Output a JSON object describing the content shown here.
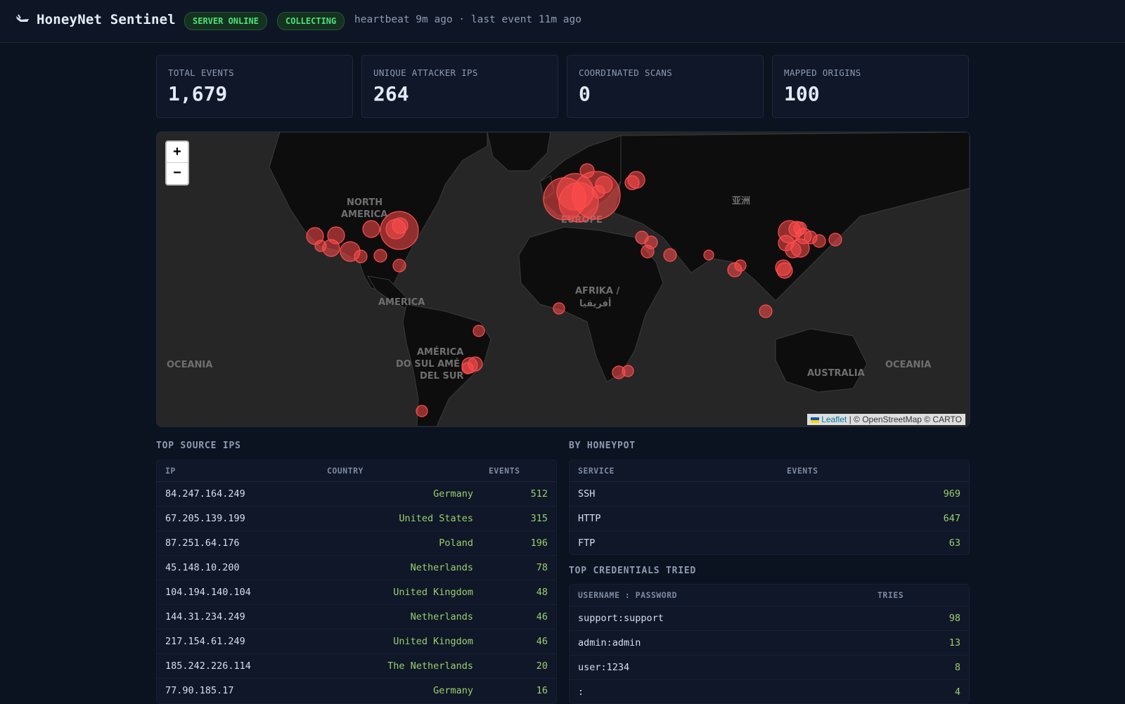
{
  "header": {
    "title": "HoneyNet Sentinel",
    "badge_server": "SERVER ONLINE",
    "badge_collecting": "COLLECTING",
    "status": "heartbeat 9m ago · last event 11m ago"
  },
  "stats": [
    {
      "label": "TOTAL EVENTS",
      "value": "1,679"
    },
    {
      "label": "UNIQUE ATTACKER IPS",
      "value": "264"
    },
    {
      "label": "COORDINATED SCANS",
      "value": "0"
    },
    {
      "label": "MAPPED ORIGINS",
      "value": "100"
    }
  ],
  "map": {
    "zoom_in": "+",
    "zoom_out": "−",
    "attribution_leaflet": "Leaflet",
    "attribution_rest": " | © OpenStreetMap © CARTO",
    "labels": {
      "north_america": "NORTH\nAMERICA",
      "america": "AMERICA",
      "south_america": "AMÉRICA\nDO SUL AMÉ\nDEL SUR",
      "europe": "EUROPE",
      "africa": "AFRIKA /\nأفريقيا",
      "asia": "亚洲",
      "australia": "AUSTRALIA",
      "oceania_left": "OCEANIA",
      "oceania_right": "OCEANIA"
    },
    "marker_color": "#ff4d4d"
  },
  "top_ips": {
    "title": "TOP SOURCE IPS",
    "columns": [
      "IP",
      "COUNTRY",
      "EVENTS"
    ],
    "rows": [
      {
        "ip": "84.247.164.249",
        "country": "Germany",
        "events": "512"
      },
      {
        "ip": "67.205.139.199",
        "country": "United States",
        "events": "315"
      },
      {
        "ip": "87.251.64.176",
        "country": "Poland",
        "events": "196"
      },
      {
        "ip": "45.148.10.200",
        "country": "Netherlands",
        "events": "78"
      },
      {
        "ip": "104.194.140.104",
        "country": "United Kingdom",
        "events": "48"
      },
      {
        "ip": "144.31.234.249",
        "country": "Netherlands",
        "events": "46"
      },
      {
        "ip": "217.154.61.249",
        "country": "United Kingdom",
        "events": "46"
      },
      {
        "ip": "185.242.226.114",
        "country": "The Netherlands",
        "events": "20"
      },
      {
        "ip": "77.90.185.17",
        "country": "Germany",
        "events": "16"
      }
    ]
  },
  "by_honeypot": {
    "title": "BY HONEYPOT",
    "columns": [
      "SERVICE",
      "EVENTS"
    ],
    "rows": [
      {
        "service": "SSH",
        "events": "969"
      },
      {
        "service": "HTTP",
        "events": "647"
      },
      {
        "service": "FTP",
        "events": "63"
      }
    ]
  },
  "credentials": {
    "title": "TOP CREDENTIALS TRIED",
    "columns": [
      "USERNAME : PASSWORD",
      "TRIES"
    ],
    "rows": [
      {
        "cred": "support:support",
        "tries": "98"
      },
      {
        "cred": "admin:admin",
        "tries": "13"
      },
      {
        "cred": "user:1234",
        "tries": "8"
      },
      {
        "cred": ":",
        "tries": "4"
      }
    ]
  }
}
